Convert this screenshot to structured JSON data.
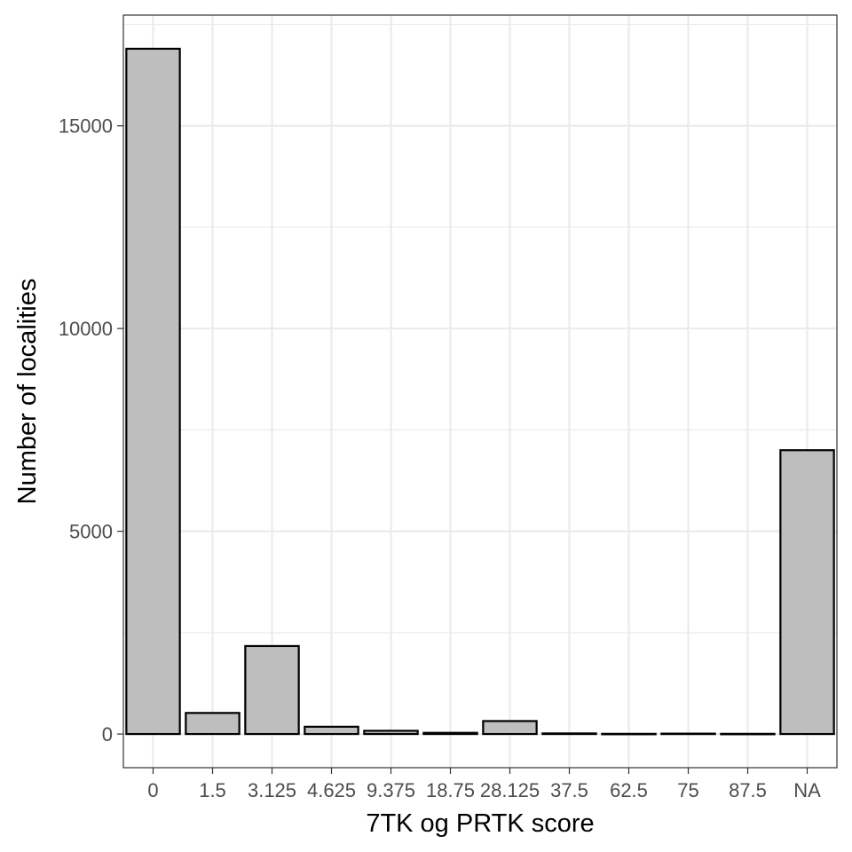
{
  "chart_data": {
    "type": "bar",
    "title": "",
    "xlabel": "7TK og PRTK score",
    "ylabel": "Number of localities",
    "categories": [
      "0",
      "1.5",
      "3.125",
      "4.625",
      "9.375",
      "18.75",
      "28.125",
      "37.5",
      "62.5",
      "75",
      "87.5",
      "NA"
    ],
    "values": [
      16900,
      520,
      2170,
      180,
      80,
      30,
      320,
      15,
      5,
      10,
      5,
      7000
    ],
    "ylim": [
      -830,
      17730
    ],
    "yticks": [
      0,
      5000,
      10000,
      15000
    ],
    "ytick_labels": [
      "0",
      "5000",
      "10000",
      "15000"
    ],
    "grid": true,
    "legend": "none",
    "bar_fill": "#bebebe",
    "bar_stroke": "#000000",
    "grid_color": "#ebebeb",
    "panel_border": "#333333"
  }
}
